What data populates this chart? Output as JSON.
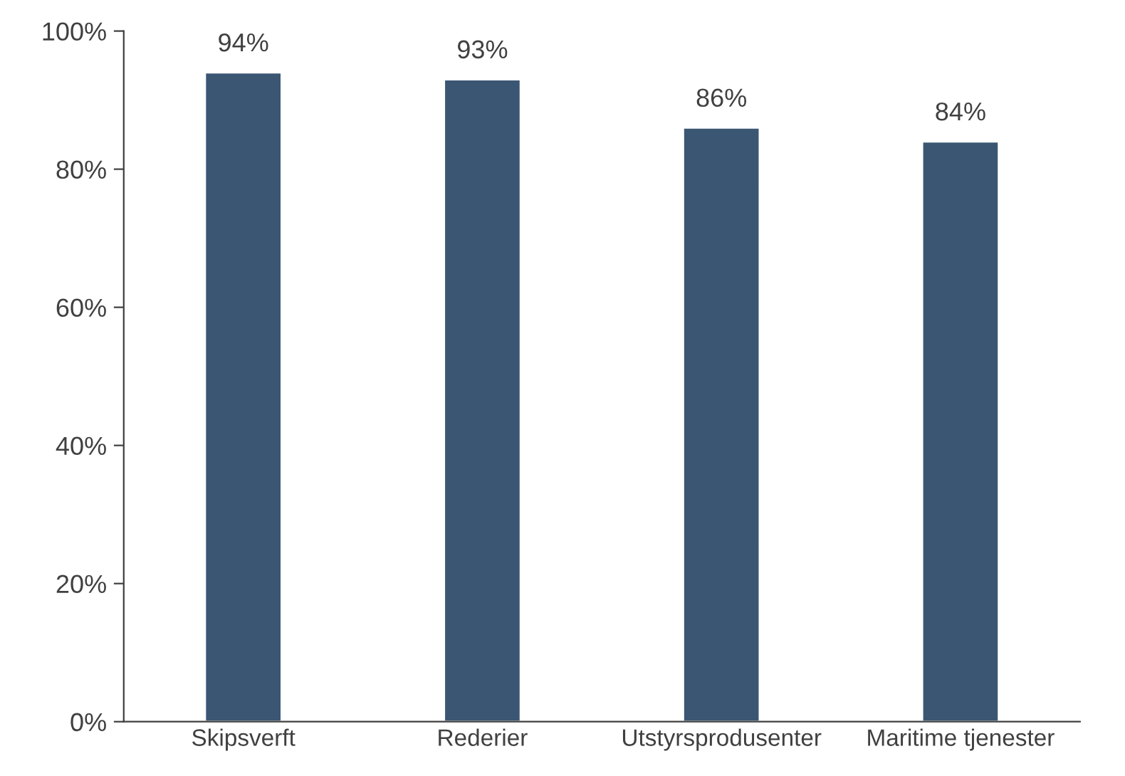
{
  "chart_data": {
    "type": "bar",
    "categories": [
      "Skipsverft",
      "Rederier",
      "Utstyrsprodusenter",
      "Maritime tjenester"
    ],
    "values": [
      94,
      93,
      86,
      84
    ],
    "color": "#3a5673",
    "data_labels": true,
    "value_labels": [
      "94%",
      "93%",
      "86%",
      "84%"
    ],
    "ylim": [
      0,
      100
    ],
    "yticks": [
      {
        "value": 0,
        "label": "0%"
      },
      {
        "value": 20,
        "label": "20%"
      },
      {
        "value": 40,
        "label": "40%"
      },
      {
        "value": 60,
        "label": "60%"
      },
      {
        "value": 80,
        "label": "80%"
      },
      {
        "value": 100,
        "label": "100%"
      }
    ],
    "grid": false,
    "legend": false
  }
}
